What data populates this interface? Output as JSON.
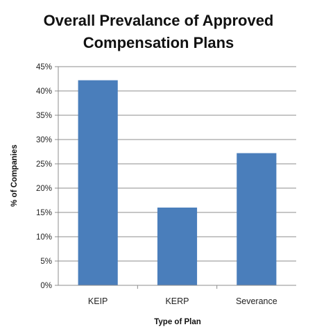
{
  "chart_data": {
    "type": "bar",
    "title_lines": [
      "Overall Prevalance of Approved",
      "Compensation Plans"
    ],
    "categories": [
      "KEIP",
      "KERP",
      "Severance"
    ],
    "values": [
      42.2,
      16.0,
      27.2
    ],
    "xlabel": "Type of Plan",
    "ylabel": "% of Companies",
    "ylim": [
      0,
      45
    ],
    "yticks": [
      0,
      5,
      10,
      15,
      20,
      25,
      30,
      35,
      40,
      45
    ],
    "ytick_labels": [
      "0%",
      "5%",
      "10%",
      "15%",
      "20%",
      "25%",
      "30%",
      "35%",
      "40%",
      "45%"
    ],
    "grid": true,
    "legend": "none",
    "bar_color": "#4a7ebb"
  }
}
